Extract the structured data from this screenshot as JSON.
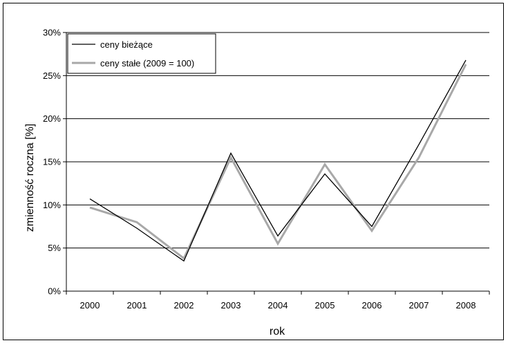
{
  "chart_data": {
    "type": "line",
    "title": "",
    "xlabel": "rok",
    "ylabel": "zmienność roczna [%]",
    "categories": [
      "2000",
      "2001",
      "2002",
      "2003",
      "2004",
      "2005",
      "2006",
      "2007",
      "2008"
    ],
    "ylim": [
      0,
      30
    ],
    "yticks": [
      "0%",
      "5%",
      "10%",
      "15%",
      "20%",
      "25%",
      "30%"
    ],
    "grid": "horizontal",
    "legend_position": "top-left",
    "series": [
      {
        "name": "ceny bieżące",
        "color": "#000000",
        "values": [
          10.7,
          7.3,
          3.5,
          16.0,
          6.4,
          13.6,
          7.5,
          17.0,
          26.8
        ]
      },
      {
        "name": "ceny stałe (2009 = 100)",
        "color": "#a8a8a8",
        "values": [
          9.7,
          8.0,
          3.8,
          15.5,
          5.5,
          14.7,
          7.0,
          15.5,
          26.3
        ]
      }
    ]
  }
}
